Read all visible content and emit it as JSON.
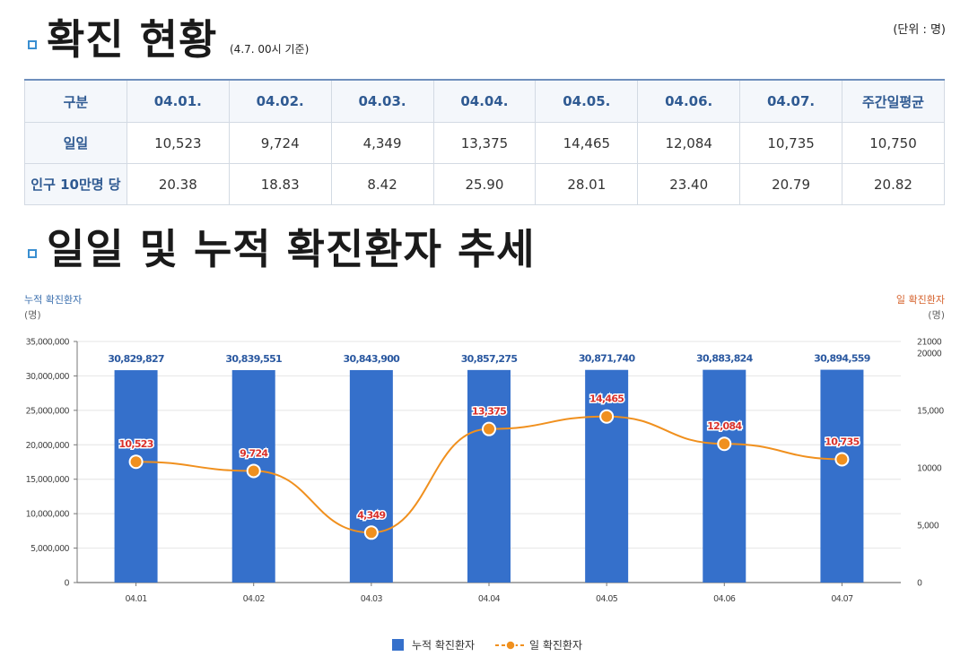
{
  "section1": {
    "title": "확진 현황",
    "basis": "(4.7. 00시 기준)",
    "unit": "(단위 : 명)"
  },
  "table": {
    "headers": [
      "구분",
      "04.01.",
      "04.02.",
      "04.03.",
      "04.04.",
      "04.05.",
      "04.06.",
      "04.07.",
      "주간일평균"
    ],
    "rows": [
      {
        "label": "일일",
        "cells": [
          "10,523",
          "9,724",
          "4,349",
          "13,375",
          "14,465",
          "12,084",
          "10,735",
          "10,750"
        ]
      },
      {
        "label": "인구 10만명 당",
        "cells": [
          "20.38",
          "18.83",
          "8.42",
          "25.90",
          "28.01",
          "23.40",
          "20.79",
          "20.82"
        ]
      }
    ]
  },
  "section2": {
    "title": "일일 및 누적 확진환자 추세"
  },
  "chart_data": {
    "type": "bar",
    "left_axis_title": "누적 확진환자",
    "left_axis_unit": "(명)",
    "right_axis_title": "일 확진환자",
    "right_axis_unit": "(명)",
    "categories": [
      "04.01",
      "04.02",
      "04.03",
      "04.04",
      "04.05",
      "04.06",
      "04.07"
    ],
    "left_ylim": [
      0,
      35000000
    ],
    "left_ticks": [
      "0",
      "5,000,000",
      "10,000,000",
      "15,000,000",
      "20,000,000",
      "25,000,000",
      "30,000,000",
      "35,000,000"
    ],
    "right_ylim": [
      0,
      21000
    ],
    "right_ticks": [
      "0",
      "5,000",
      "10000",
      "15,000",
      "20000",
      "21000"
    ],
    "series": [
      {
        "name": "누적 확진환자",
        "type": "bar",
        "axis": "left",
        "color": "#3570cb",
        "values": [
          30829827,
          30839551,
          30843900,
          30857275,
          30871740,
          30883824,
          30894559
        ],
        "labels": [
          "30,829,827",
          "30,839,551",
          "30,843,900",
          "30,857,275",
          "30,871,740",
          "30,883,824",
          "30,894,559"
        ]
      },
      {
        "name": "일 확진환자",
        "type": "line",
        "axis": "right",
        "color": "#f0901e",
        "values": [
          10523,
          9724,
          4349,
          13375,
          14465,
          12084,
          10735
        ],
        "labels": [
          "10,523",
          "9,724",
          "4,349",
          "13,375",
          "14,465",
          "12,084",
          "10,735"
        ]
      }
    ],
    "legend_position": "bottom-center",
    "grid": true
  },
  "colors": {
    "accent_blue": "#3570cb",
    "accent_orange": "#f0901e",
    "left_axis_title_color": "#3b6fae",
    "right_axis_title_color": "#d5602a",
    "line_label_color": "#d9302a",
    "bar_label_color": "#2a58a0"
  }
}
